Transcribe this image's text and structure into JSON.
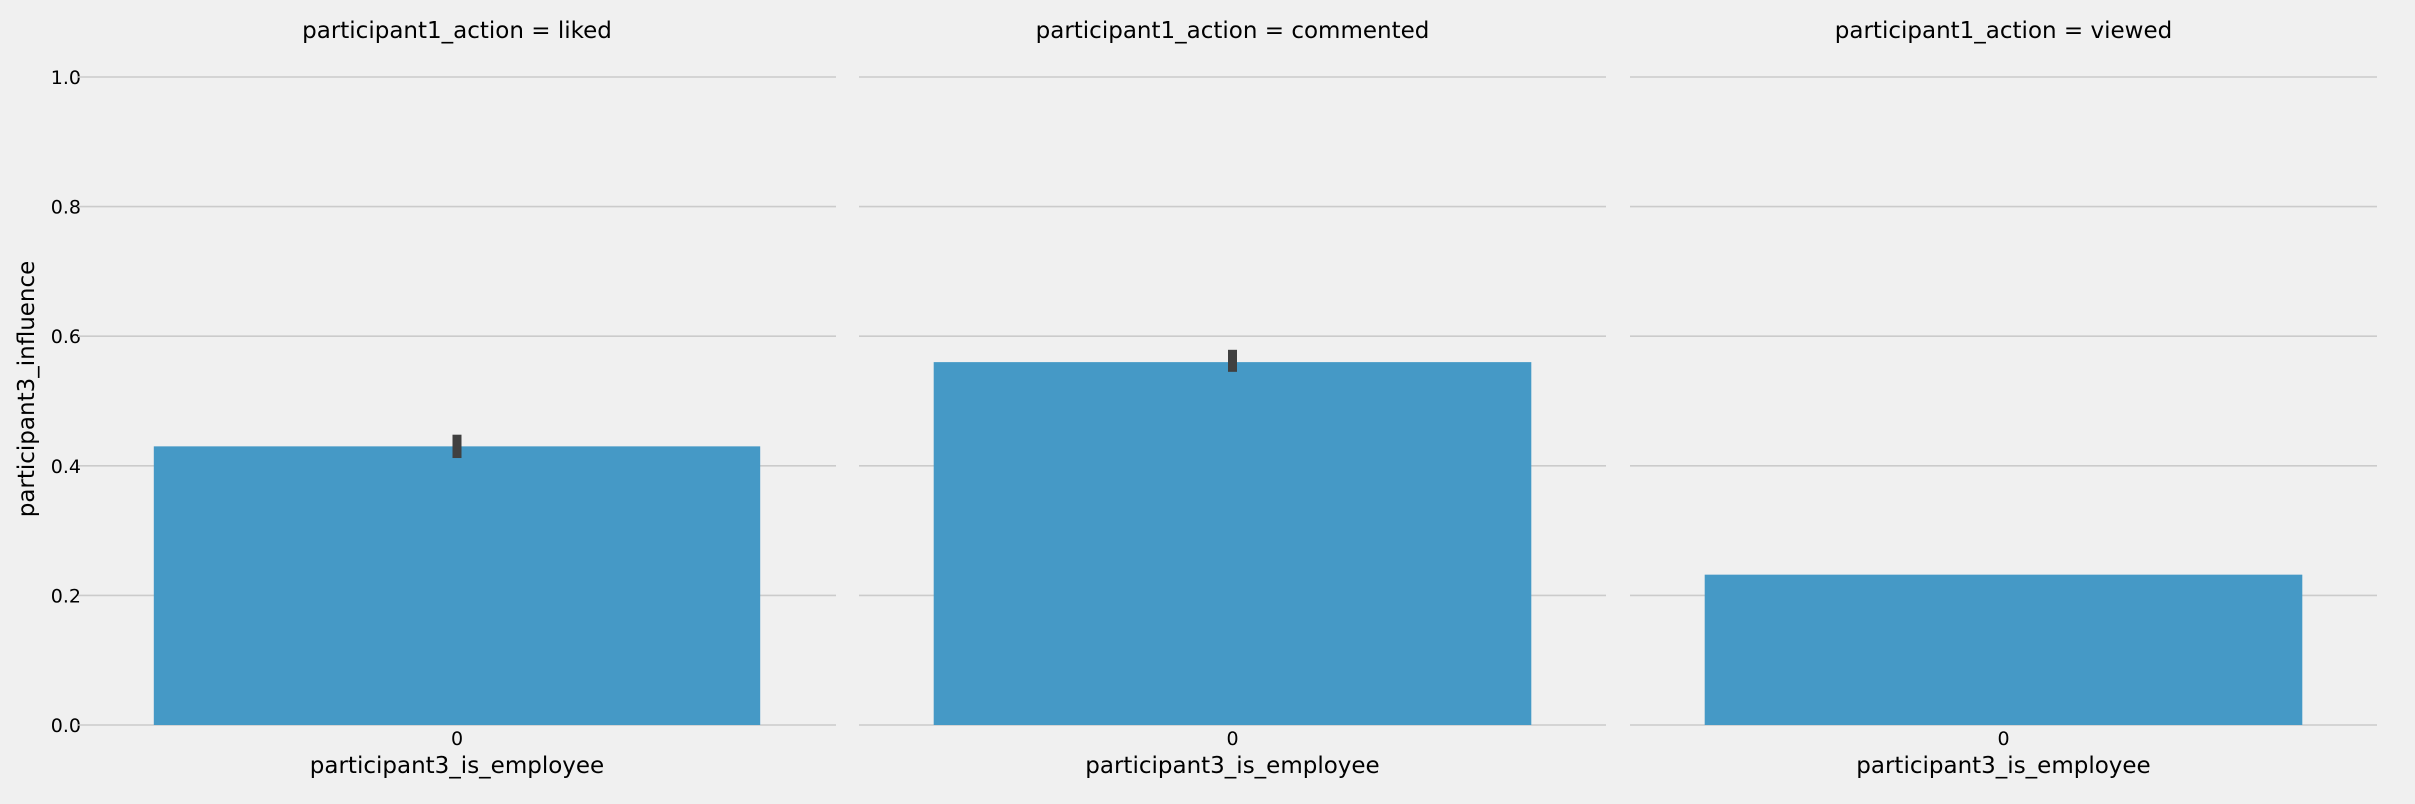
{
  "chart_data": {
    "type": "bar",
    "ylabel": "participant3_influence",
    "ylim": [
      0,
      1.0
    ],
    "yticks": [
      "0.0",
      "0.2",
      "0.4",
      "0.6",
      "0.8",
      "1.0"
    ],
    "grid": true,
    "bar_color": "#4599c6",
    "errorbar_color": "#404040",
    "background": "#f0f0f0",
    "facets": [
      {
        "title": "participant1_action = liked",
        "xlabel": "participant3_is_employee",
        "categories": [
          "0"
        ],
        "values": [
          0.43
        ],
        "ci": [
          [
            0.412,
            0.448
          ]
        ]
      },
      {
        "title": "participant1_action = commented",
        "xlabel": "participant3_is_employee",
        "categories": [
          "0"
        ],
        "values": [
          0.56
        ],
        "ci": [
          [
            0.545,
            0.579
          ]
        ]
      },
      {
        "title": "participant1_action = viewed",
        "xlabel": "participant3_is_employee",
        "categories": [
          "0"
        ],
        "values": [
          0.232
        ],
        "ci": null
      }
    ]
  }
}
